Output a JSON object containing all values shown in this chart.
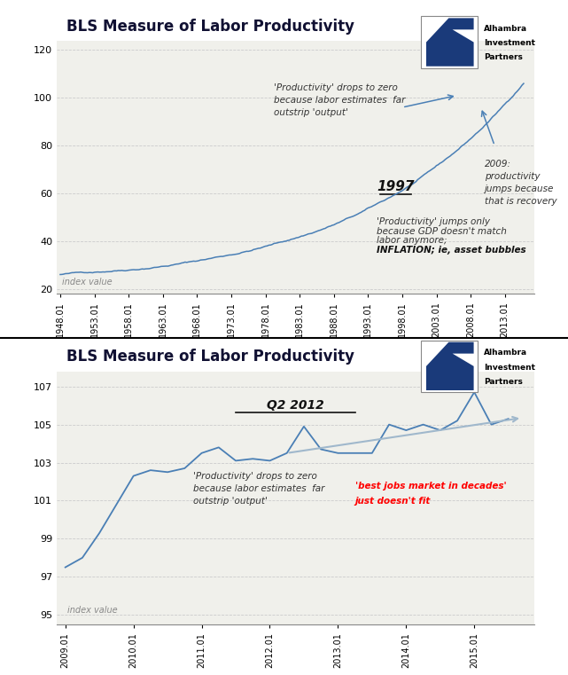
{
  "title": "BLS Measure of Labor Productivity",
  "bg_color": "#f0f0eb",
  "plot_bg": "#f0f0eb",
  "line_color": "#4a7fb5",
  "trendline_color": "#a0b8cc",
  "chart1": {
    "yticks": [
      20,
      40,
      60,
      80,
      100,
      120
    ],
    "ylim": [
      18,
      124
    ],
    "xtick_labels": [
      "1948.01",
      "1953.01",
      "1958.01",
      "1963.01",
      "1968.01",
      "1973.01",
      "1978.01",
      "1983.01",
      "1988.01",
      "1993.01",
      "1998.01",
      "2003.01",
      "2008.01",
      "2013.01"
    ],
    "ann1_text": "'Productivity' drops to zero\nbecause labor estimates  far\noutstrip 'output'",
    "ann2_text": "2009:\nproductivity\njumps because\nthat is recovery",
    "ann3_text": "1997",
    "ann4_line1": "'Productivity' jumps only",
    "ann4_line2": "because GDP doesn't match",
    "ann4_line3": "labor anymore;",
    "ann4_line4": "INFLATION; ie, asset bubbles",
    "index_label": "index value"
  },
  "chart2": {
    "yticks": [
      95,
      97,
      99,
      101,
      103,
      105,
      107
    ],
    "ylim": [
      94.5,
      107.8
    ],
    "xtick_labels": [
      "2009.01",
      "2010.01",
      "2011.01",
      "2012.01",
      "2013.01",
      "2014.01",
      "2015.01"
    ],
    "ann1_text": "Q2 2012",
    "ann2_text": "'Productivity' drops to zero\nbecause labor estimates  far\noutstrip 'output'",
    "ann3_line1": "'best jobs market in decades'",
    "ann3_line2": "just doesn't fit",
    "index_label": "index value"
  }
}
